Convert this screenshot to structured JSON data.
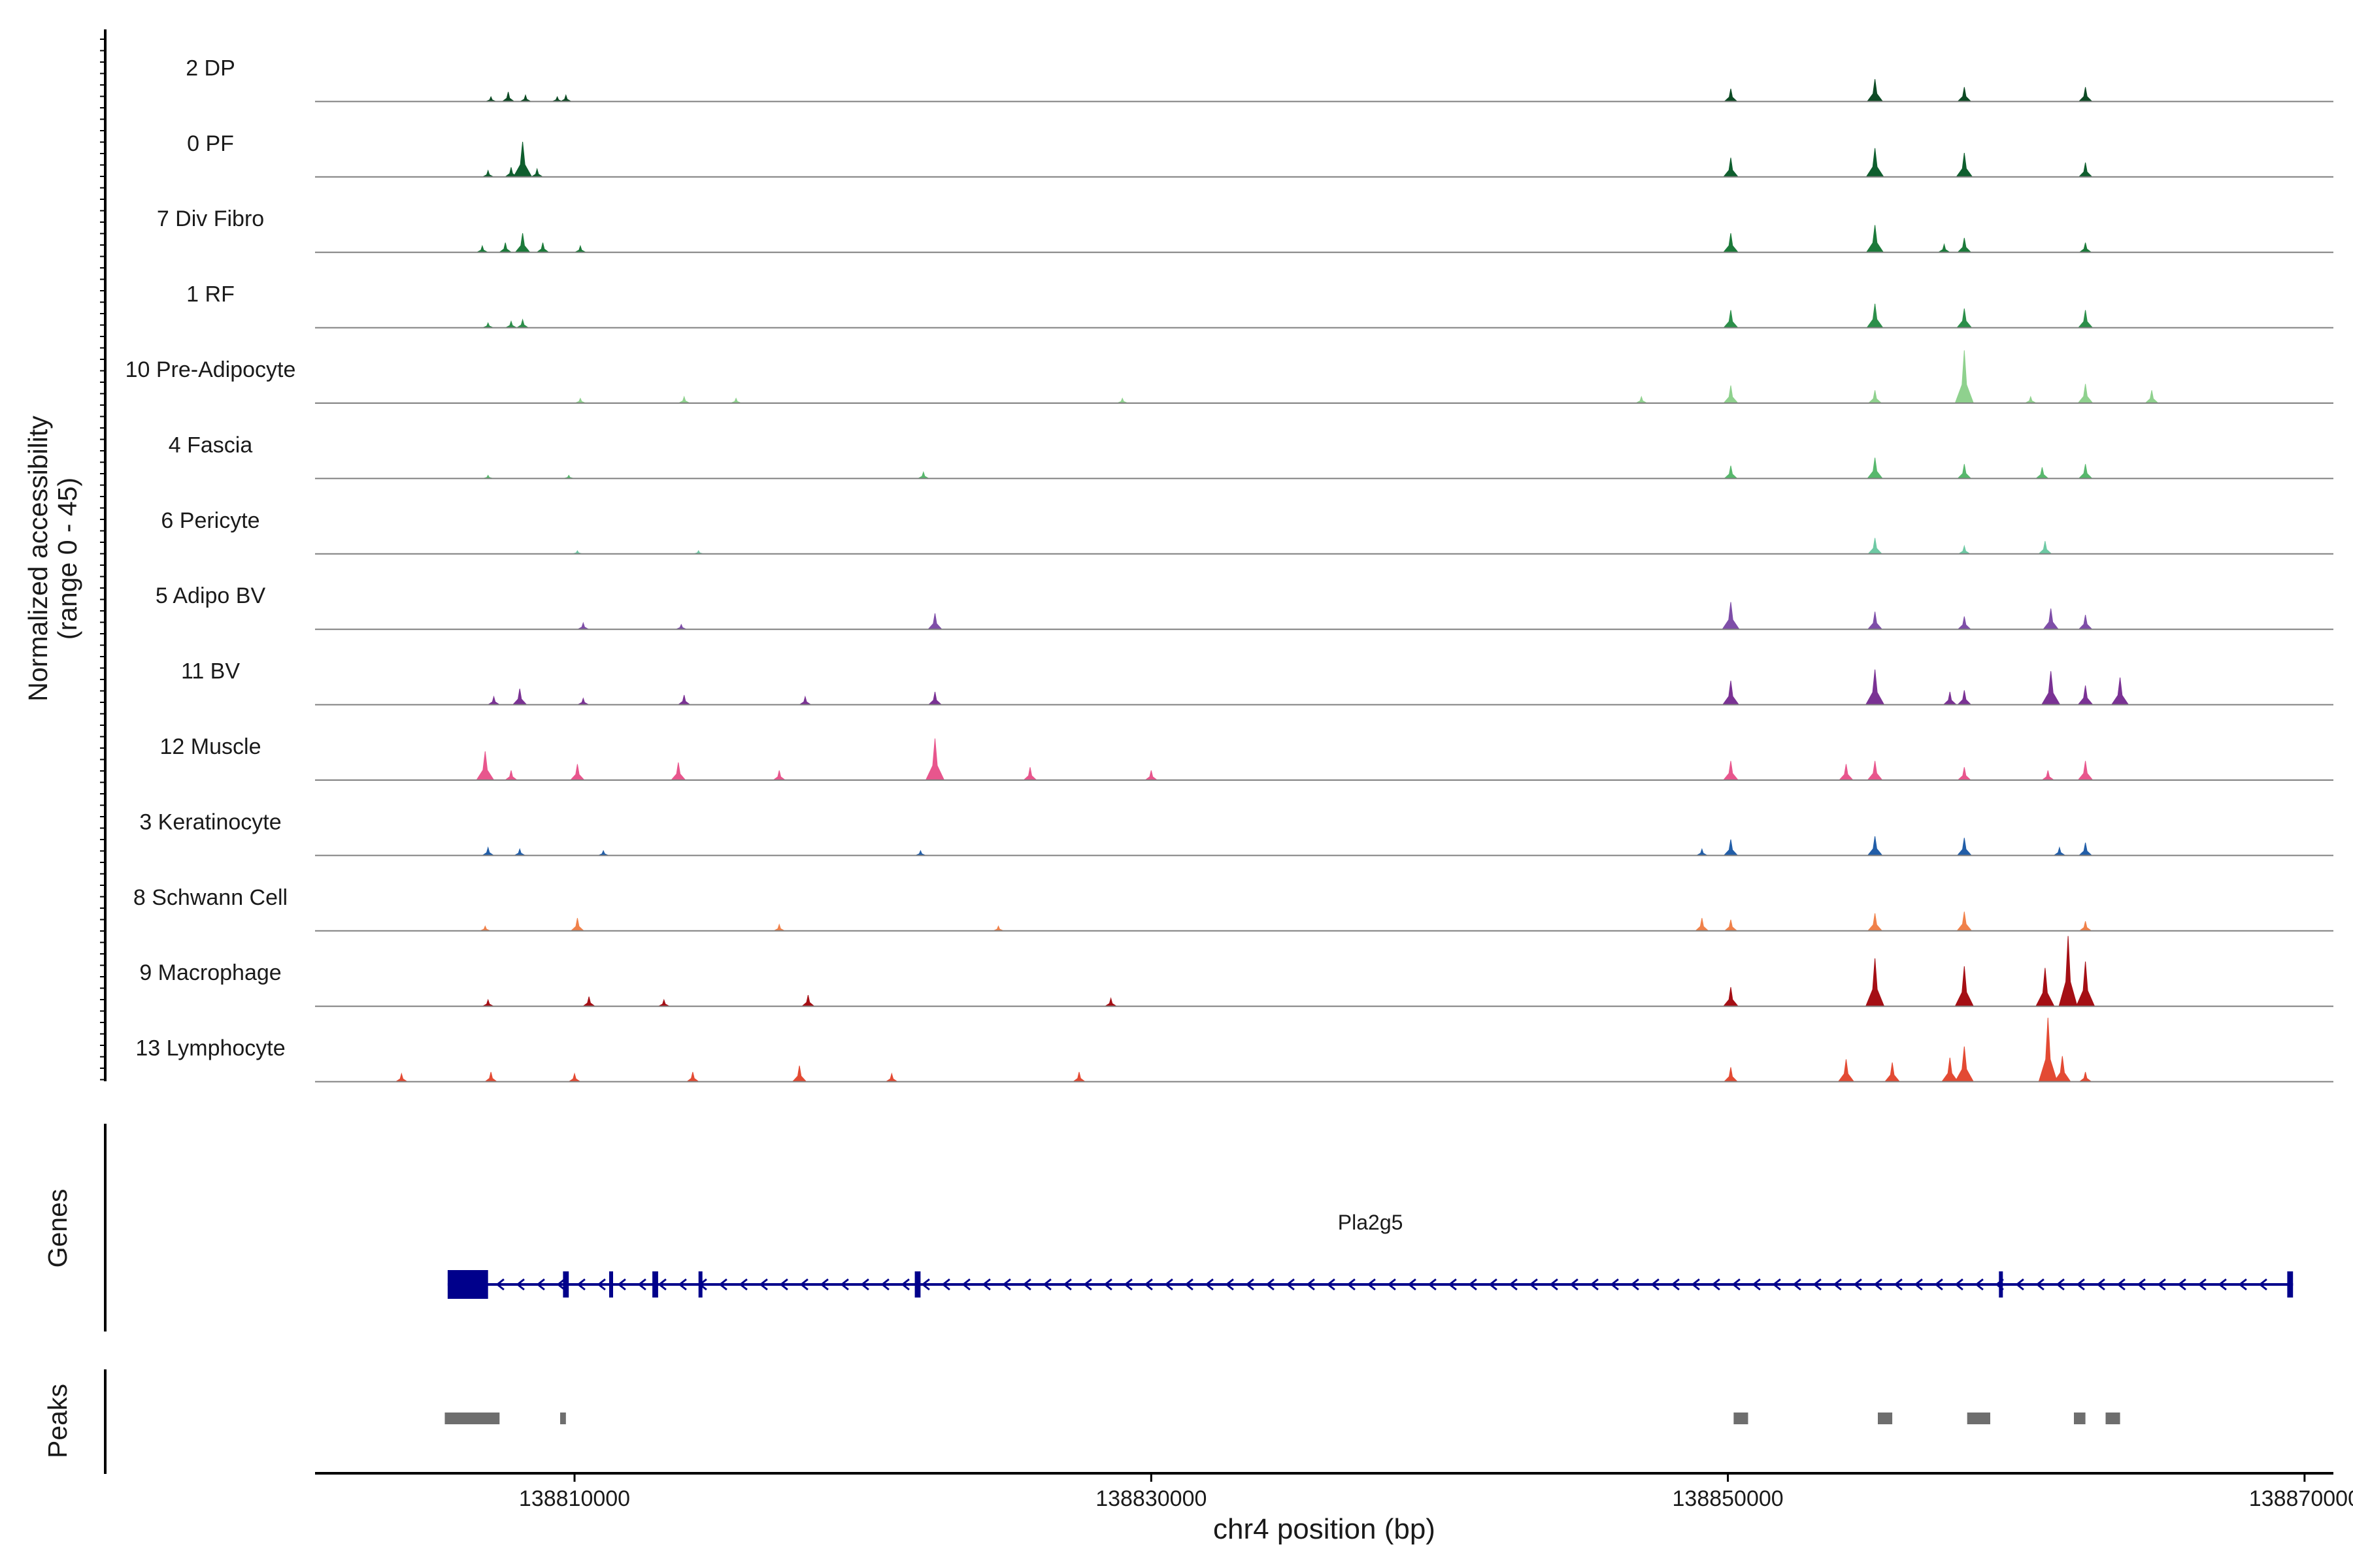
{
  "chart_data": {
    "type": "area",
    "chromosome": "chr4",
    "region": [
      138801000,
      138871000
    ],
    "y_axis_label": [
      "Normalized accessibility",
      "(range 0 - 45)"
    ],
    "ylim": [
      0,
      45
    ],
    "x_axis_label": "chr4 position (bp)",
    "x_ticks": [
      138810000,
      138830000,
      138850000,
      138870000
    ],
    "x_tick_labels": [
      "138810000",
      "138830000",
      "138850000",
      "138870000"
    ],
    "section_labels": {
      "genes": "Genes",
      "peaks": "Peaks"
    },
    "tracks": [
      {
        "name": "2 DP",
        "color": "#0d4a24",
        "peaks": [
          [
            138807100,
            3
          ],
          [
            138807700,
            6
          ],
          [
            138808300,
            4
          ],
          [
            138809400,
            3
          ],
          [
            138809700,
            4
          ],
          [
            138850100,
            8
          ],
          [
            138855100,
            14
          ],
          [
            138858200,
            9
          ],
          [
            138862400,
            9
          ]
        ]
      },
      {
        "name": "0 PF",
        "color": "#0f5e2e",
        "peaks": [
          [
            138807000,
            4
          ],
          [
            138807800,
            6
          ],
          [
            138808200,
            22
          ],
          [
            138808700,
            5
          ],
          [
            138850100,
            12
          ],
          [
            138855100,
            18
          ],
          [
            138858200,
            15
          ],
          [
            138862400,
            9
          ]
        ]
      },
      {
        "name": "7 Div Fibro",
        "color": "#1c7a3a",
        "peaks": [
          [
            138806800,
            4
          ],
          [
            138807600,
            6
          ],
          [
            138808200,
            12
          ],
          [
            138808900,
            6
          ],
          [
            138810200,
            4
          ],
          [
            138850100,
            12
          ],
          [
            138855100,
            17
          ],
          [
            138857500,
            5
          ],
          [
            138858200,
            9
          ],
          [
            138862400,
            6
          ]
        ]
      },
      {
        "name": "1 RF",
        "color": "#2c8f4a",
        "peaks": [
          [
            138807000,
            3
          ],
          [
            138807800,
            4
          ],
          [
            138808200,
            5
          ],
          [
            138850100,
            11
          ],
          [
            138855100,
            15
          ],
          [
            138858200,
            12
          ],
          [
            138862400,
            11
          ]
        ]
      },
      {
        "name": "10 Pre-Adipocyte",
        "color": "#8fd18e",
        "peaks": [
          [
            138810200,
            3
          ],
          [
            138813800,
            4
          ],
          [
            138815600,
            3
          ],
          [
            138829000,
            3
          ],
          [
            138847000,
            4
          ],
          [
            138850100,
            11
          ],
          [
            138855100,
            8
          ],
          [
            138858200,
            33
          ],
          [
            138860500,
            4
          ],
          [
            138862400,
            12
          ],
          [
            138864700,
            8
          ]
        ]
      },
      {
        "name": "4 Fascia",
        "color": "#58b86d",
        "peaks": [
          [
            138807000,
            2
          ],
          [
            138809800,
            2
          ],
          [
            138822100,
            4
          ],
          [
            138850100,
            8
          ],
          [
            138855100,
            13
          ],
          [
            138858200,
            9
          ],
          [
            138860900,
            7
          ],
          [
            138862400,
            9
          ]
        ]
      },
      {
        "name": "6 Pericyte",
        "color": "#6ec9a4",
        "peaks": [
          [
            138810100,
            2
          ],
          [
            138814300,
            2
          ],
          [
            138855100,
            10
          ],
          [
            138858200,
            5
          ],
          [
            138861000,
            8
          ]
        ]
      },
      {
        "name": "5 Adipo BV",
        "color": "#7e4ea8",
        "peaks": [
          [
            138810300,
            4
          ],
          [
            138813700,
            3
          ],
          [
            138822500,
            10
          ],
          [
            138850100,
            17
          ],
          [
            138855100,
            11
          ],
          [
            138858200,
            8
          ],
          [
            138861200,
            13
          ],
          [
            138862400,
            9
          ]
        ]
      },
      {
        "name": "11 BV",
        "color": "#7a3294",
        "peaks": [
          [
            138807200,
            5
          ],
          [
            138808100,
            10
          ],
          [
            138810300,
            4
          ],
          [
            138813800,
            6
          ],
          [
            138818000,
            5
          ],
          [
            138822500,
            8
          ],
          [
            138850100,
            15
          ],
          [
            138855100,
            22
          ],
          [
            138857700,
            8
          ],
          [
            138858200,
            9
          ],
          [
            138861200,
            21
          ],
          [
            138862400,
            12
          ],
          [
            138863600,
            17
          ]
        ]
      },
      {
        "name": "12 Muscle",
        "color": "#e8568d",
        "peaks": [
          [
            138806900,
            18
          ],
          [
            138807800,
            6
          ],
          [
            138810100,
            10
          ],
          [
            138813600,
            11
          ],
          [
            138817100,
            6
          ],
          [
            138822500,
            26
          ],
          [
            138825800,
            8
          ],
          [
            138830000,
            6
          ],
          [
            138850100,
            12
          ],
          [
            138854100,
            10
          ],
          [
            138855100,
            12
          ],
          [
            138858200,
            8
          ],
          [
            138861100,
            6
          ],
          [
            138862400,
            12
          ]
        ]
      },
      {
        "name": "3 Keratinocyte",
        "color": "#225ea8",
        "peaks": [
          [
            138807000,
            5
          ],
          [
            138808100,
            4
          ],
          [
            138811000,
            3
          ],
          [
            138822000,
            3
          ],
          [
            138849100,
            4
          ],
          [
            138850100,
            10
          ],
          [
            138855100,
            12
          ],
          [
            138858200,
            11
          ],
          [
            138861500,
            5
          ],
          [
            138862400,
            8
          ]
        ]
      },
      {
        "name": "8 Schwann Cell",
        "color": "#f0814a",
        "peaks": [
          [
            138806900,
            3
          ],
          [
            138810100,
            8
          ],
          [
            138817100,
            4
          ],
          [
            138824700,
            3
          ],
          [
            138849100,
            8
          ],
          [
            138850100,
            7
          ],
          [
            138855100,
            11
          ],
          [
            138858200,
            12
          ],
          [
            138862400,
            6
          ]
        ]
      },
      {
        "name": "9 Macrophage",
        "color": "#a50f15",
        "peaks": [
          [
            138807000,
            4
          ],
          [
            138810500,
            6
          ],
          [
            138813100,
            4
          ],
          [
            138818100,
            7
          ],
          [
            138828600,
            5
          ],
          [
            138850100,
            12
          ],
          [
            138855100,
            30
          ],
          [
            138858200,
            25
          ],
          [
            138861000,
            24
          ],
          [
            138861800,
            44
          ],
          [
            138862400,
            28
          ]
        ]
      },
      {
        "name": "13 Lymphocyte",
        "color": "#e34a33",
        "peaks": [
          [
            138804000,
            5
          ],
          [
            138807100,
            6
          ],
          [
            138810000,
            5
          ],
          [
            138814100,
            6
          ],
          [
            138817800,
            10
          ],
          [
            138821000,
            5
          ],
          [
            138827500,
            6
          ],
          [
            138850100,
            9
          ],
          [
            138854100,
            14
          ],
          [
            138855700,
            12
          ],
          [
            138857700,
            15
          ],
          [
            138858200,
            22
          ],
          [
            138861100,
            40
          ],
          [
            138861600,
            16
          ],
          [
            138862400,
            6
          ]
        ]
      }
    ],
    "gene": {
      "name": "Pla2g5",
      "color": "#00008b",
      "strand": "-",
      "start": 138805600,
      "end": 138869600,
      "exons": [
        [
          138805600,
          138807000
        ],
        [
          138809600,
          138809800
        ],
        [
          138811200,
          138811300
        ],
        [
          138812700,
          138812900
        ],
        [
          138814300,
          138814400
        ],
        [
          138821800,
          138822000
        ],
        [
          138859400,
          138859500
        ],
        [
          138869400,
          138869600
        ]
      ]
    },
    "peak_regions": [
      [
        138805500,
        138807400
      ],
      [
        138809500,
        138809700
      ],
      [
        138850200,
        138850700
      ],
      [
        138855200,
        138855700
      ],
      [
        138858300,
        138859100
      ],
      [
        138862000,
        138862400
      ],
      [
        138863100,
        138863600
      ]
    ]
  }
}
